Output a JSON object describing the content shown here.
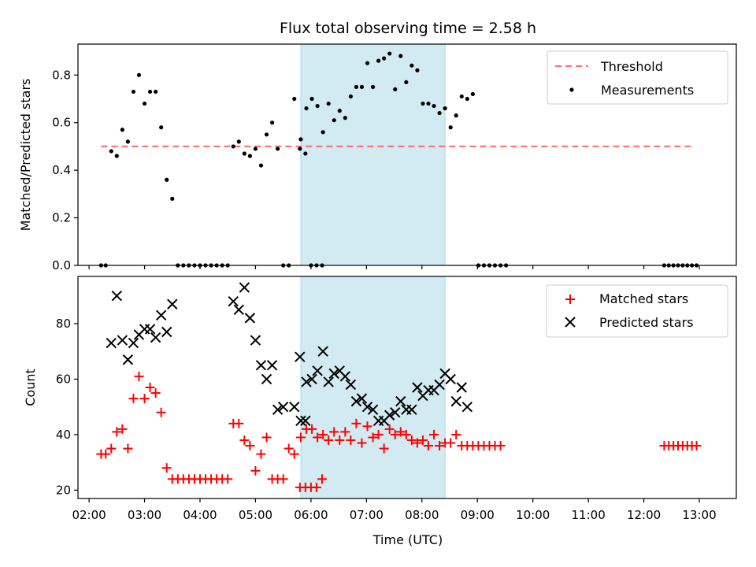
{
  "figure": {
    "title": "Flux total observing time = 2.58 h",
    "xlabel": "Time (UTC)"
  },
  "chart_data": [
    {
      "type": "scatter",
      "ylabel": "Matched/Predicted stars",
      "ylim": [
        0,
        0.93
      ],
      "yticks": [
        0.0,
        0.2,
        0.4,
        0.6,
        0.8
      ],
      "xlim": [
        "01:48",
        "13:40"
      ],
      "xticks": [
        "02:00",
        "03:00",
        "04:00",
        "05:00",
        "06:00",
        "07:00",
        "08:00",
        "09:00",
        "10:00",
        "11:00",
        "12:00",
        "13:00"
      ],
      "grid": false,
      "legend_position": "top-right",
      "shaded_interval": {
        "start": "05:49",
        "end": "08:25",
        "color": "#add8e6"
      },
      "threshold": {
        "name": "Threshold",
        "value": 0.5,
        "x_range": [
          "02:13",
          "12:52"
        ],
        "color": "#ff6b6b",
        "style": "dashed"
      },
      "series": [
        {
          "name": "Measurements",
          "color": "#000000",
          "marker": "dot",
          "points": [
            [
              "02:13",
              0.0
            ],
            [
              "02:18",
              0.0
            ],
            [
              "02:24",
              0.48
            ],
            [
              "02:30",
              0.46
            ],
            [
              "02:36",
              0.57
            ],
            [
              "02:42",
              0.52
            ],
            [
              "02:48",
              0.73
            ],
            [
              "02:54",
              0.8
            ],
            [
              "03:00",
              0.68
            ],
            [
              "03:06",
              0.73
            ],
            [
              "03:12",
              0.73
            ],
            [
              "03:18",
              0.58
            ],
            [
              "03:24",
              0.36
            ],
            [
              "03:30",
              0.28
            ],
            [
              "03:36",
              0.0
            ],
            [
              "03:42",
              0.0
            ],
            [
              "03:48",
              0.0
            ],
            [
              "03:54",
              0.0
            ],
            [
              "04:00",
              0.0
            ],
            [
              "04:06",
              0.0
            ],
            [
              "04:12",
              0.0
            ],
            [
              "04:18",
              0.0
            ],
            [
              "04:24",
              0.0
            ],
            [
              "04:30",
              0.0
            ],
            [
              "04:36",
              0.5
            ],
            [
              "04:42",
              0.52
            ],
            [
              "04:48",
              0.47
            ],
            [
              "04:54",
              0.46
            ],
            [
              "05:00",
              0.49
            ],
            [
              "05:06",
              0.42
            ],
            [
              "05:12",
              0.55
            ],
            [
              "05:18",
              0.6
            ],
            [
              "05:24",
              0.49
            ],
            [
              "05:30",
              0.0
            ],
            [
              "05:36",
              0.0
            ],
            [
              "05:42",
              0.7
            ],
            [
              "05:48",
              0.49
            ],
            [
              "05:54",
              0.47
            ],
            [
              "06:00",
              0.0
            ],
            [
              "06:06",
              0.0
            ],
            [
              "06:12",
              0.0
            ],
            [
              "05:49",
              0.53
            ],
            [
              "05:55",
              0.66
            ],
            [
              "06:01",
              0.7
            ],
            [
              "06:07",
              0.67
            ],
            [
              "06:13",
              0.56
            ],
            [
              "06:19",
              0.68
            ],
            [
              "06:25",
              0.61
            ],
            [
              "06:31",
              0.65
            ],
            [
              "06:37",
              0.62
            ],
            [
              "06:43",
              0.71
            ],
            [
              "06:49",
              0.75
            ],
            [
              "06:55",
              0.75
            ],
            [
              "07:01",
              0.85
            ],
            [
              "07:07",
              0.75
            ],
            [
              "07:13",
              0.86
            ],
            [
              "07:19",
              0.87
            ],
            [
              "07:25",
              0.89
            ],
            [
              "07:31",
              0.74
            ],
            [
              "07:37",
              0.88
            ],
            [
              "07:43",
              0.77
            ],
            [
              "07:49",
              0.84
            ],
            [
              "07:55",
              0.82
            ],
            [
              "08:01",
              0.68
            ],
            [
              "08:07",
              0.68
            ],
            [
              "08:13",
              0.67
            ],
            [
              "08:19",
              0.64
            ],
            [
              "08:25",
              0.66
            ],
            [
              "08:31",
              0.58
            ],
            [
              "08:37",
              0.63
            ],
            [
              "08:43",
              0.71
            ],
            [
              "08:49",
              0.7
            ],
            [
              "08:55",
              0.72
            ],
            [
              "09:01",
              0.0
            ],
            [
              "09:07",
              0.0
            ],
            [
              "09:13",
              0.0
            ],
            [
              "09:19",
              0.0
            ],
            [
              "09:25",
              0.0
            ],
            [
              "09:31",
              0.0
            ],
            [
              "12:22",
              0.0
            ],
            [
              "12:27",
              0.0
            ],
            [
              "12:32",
              0.0
            ],
            [
              "12:37",
              0.0
            ],
            [
              "12:42",
              0.0
            ],
            [
              "12:47",
              0.0
            ],
            [
              "12:52",
              0.0
            ],
            [
              "12:57",
              0.0
            ]
          ]
        }
      ]
    },
    {
      "type": "scatter",
      "ylabel": "Count",
      "ylim": [
        17,
        97
      ],
      "yticks": [
        20,
        40,
        60,
        80
      ],
      "xlim": [
        "01:48",
        "13:40"
      ],
      "grid": false,
      "legend_position": "top-right",
      "shaded_interval": {
        "start": "05:49",
        "end": "08:25",
        "color": "#add8e6"
      },
      "series": [
        {
          "name": "Matched stars",
          "color": "#ff0000",
          "marker": "plus",
          "points": [
            [
              "02:13",
              33
            ],
            [
              "02:18",
              33
            ],
            [
              "02:24",
              35
            ],
            [
              "02:30",
              41
            ],
            [
              "02:36",
              42
            ],
            [
              "02:42",
              35
            ],
            [
              "02:48",
              53
            ],
            [
              "02:54",
              61
            ],
            [
              "03:00",
              53
            ],
            [
              "03:06",
              57
            ],
            [
              "03:12",
              55
            ],
            [
              "03:18",
              48
            ],
            [
              "03:24",
              28
            ],
            [
              "03:30",
              24
            ],
            [
              "03:36",
              24
            ],
            [
              "03:42",
              24
            ],
            [
              "03:48",
              24
            ],
            [
              "03:54",
              24
            ],
            [
              "04:00",
              24
            ],
            [
              "04:06",
              24
            ],
            [
              "04:12",
              24
            ],
            [
              "04:18",
              24
            ],
            [
              "04:24",
              24
            ],
            [
              "04:30",
              24
            ],
            [
              "04:36",
              44
            ],
            [
              "04:42",
              44
            ],
            [
              "04:48",
              38
            ],
            [
              "04:54",
              36
            ],
            [
              "05:00",
              27
            ],
            [
              "05:06",
              33
            ],
            [
              "05:12",
              39
            ],
            [
              "05:18",
              24
            ],
            [
              "05:24",
              24
            ],
            [
              "05:30",
              24
            ],
            [
              "05:36",
              35
            ],
            [
              "05:42",
              33
            ],
            [
              "05:48",
              21
            ],
            [
              "05:54",
              21
            ],
            [
              "06:00",
              21
            ],
            [
              "06:06",
              21
            ],
            [
              "06:12",
              24
            ],
            [
              "05:49",
              39
            ],
            [
              "05:55",
              42
            ],
            [
              "06:01",
              42
            ],
            [
              "06:07",
              39
            ],
            [
              "06:13",
              40
            ],
            [
              "06:19",
              38
            ],
            [
              "06:25",
              41
            ],
            [
              "06:31",
              38
            ],
            [
              "06:37",
              41
            ],
            [
              "06:43",
              38
            ],
            [
              "06:49",
              44
            ],
            [
              "06:55",
              37
            ],
            [
              "07:01",
              43
            ],
            [
              "07:07",
              39
            ],
            [
              "07:13",
              40
            ],
            [
              "07:19",
              35
            ],
            [
              "07:25",
              42
            ],
            [
              "07:31",
              40
            ],
            [
              "07:37",
              41
            ],
            [
              "07:43",
              40
            ],
            [
              "07:49",
              38
            ],
            [
              "07:55",
              37
            ],
            [
              "08:01",
              38
            ],
            [
              "08:07",
              36
            ],
            [
              "08:13",
              40
            ],
            [
              "08:19",
              36
            ],
            [
              "08:25",
              37
            ],
            [
              "08:31",
              37
            ],
            [
              "08:37",
              40
            ],
            [
              "08:43",
              36
            ],
            [
              "08:49",
              36
            ],
            [
              "08:55",
              36
            ],
            [
              "09:01",
              36
            ],
            [
              "09:07",
              36
            ],
            [
              "09:13",
              36
            ],
            [
              "09:19",
              36
            ],
            [
              "09:25",
              36
            ],
            [
              "12:22",
              36
            ],
            [
              "12:27",
              36
            ],
            [
              "12:32",
              36
            ],
            [
              "12:37",
              36
            ],
            [
              "12:42",
              36
            ],
            [
              "12:47",
              36
            ],
            [
              "12:52",
              36
            ],
            [
              "12:57",
              36
            ]
          ]
        },
        {
          "name": "Predicted stars",
          "color": "#000000",
          "marker": "x",
          "points": [
            [
              "02:24",
              73
            ],
            [
              "02:30",
              90
            ],
            [
              "02:36",
              74
            ],
            [
              "02:42",
              67
            ],
            [
              "02:48",
              73
            ],
            [
              "02:54",
              76
            ],
            [
              "03:00",
              78
            ],
            [
              "03:06",
              78
            ],
            [
              "03:12",
              75
            ],
            [
              "03:18",
              83
            ],
            [
              "03:24",
              77
            ],
            [
              "03:30",
              87
            ],
            [
              "04:36",
              88
            ],
            [
              "04:42",
              85
            ],
            [
              "04:48",
              93
            ],
            [
              "04:54",
              82
            ],
            [
              "05:00",
              74
            ],
            [
              "05:06",
              65
            ],
            [
              "05:12",
              60
            ],
            [
              "05:18",
              65
            ],
            [
              "05:24",
              49
            ],
            [
              "05:30",
              50
            ],
            [
              "05:42",
              50
            ],
            [
              "05:48",
              68
            ],
            [
              "05:54",
              45
            ],
            [
              "05:49",
              45
            ],
            [
              "05:55",
              59
            ],
            [
              "06:01",
              60
            ],
            [
              "06:07",
              63
            ],
            [
              "06:13",
              70
            ],
            [
              "06:19",
              59
            ],
            [
              "06:25",
              62
            ],
            [
              "06:31",
              63
            ],
            [
              "06:37",
              61
            ],
            [
              "06:43",
              58
            ],
            [
              "06:49",
              52
            ],
            [
              "06:55",
              53
            ],
            [
              "07:01",
              50
            ],
            [
              "07:07",
              49
            ],
            [
              "07:13",
              45
            ],
            [
              "07:19",
              45
            ],
            [
              "07:25",
              47
            ],
            [
              "07:31",
              48
            ],
            [
              "07:37",
              52
            ],
            [
              "07:43",
              49
            ],
            [
              "07:49",
              49
            ],
            [
              "07:55",
              57
            ],
            [
              "08:01",
              54
            ],
            [
              "08:07",
              56
            ],
            [
              "08:13",
              56
            ],
            [
              "08:19",
              58
            ],
            [
              "08:25",
              62
            ],
            [
              "08:31",
              60
            ],
            [
              "08:37",
              52
            ],
            [
              "08:43",
              57
            ],
            [
              "08:49",
              50
            ]
          ]
        }
      ]
    }
  ]
}
